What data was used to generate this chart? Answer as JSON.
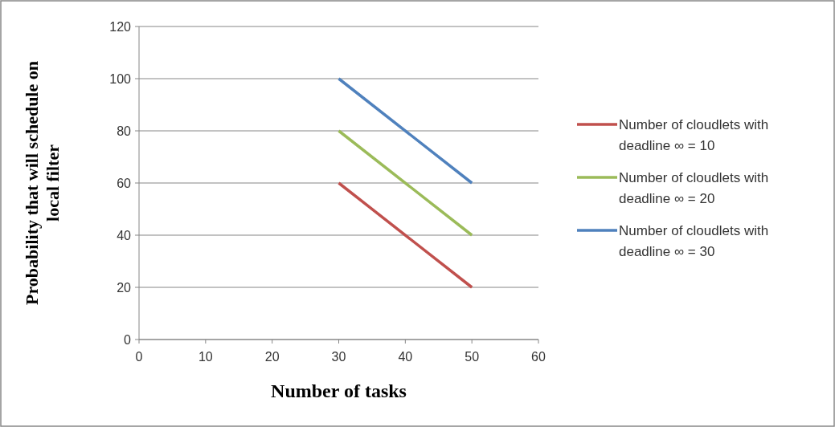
{
  "chart_data": {
    "type": "line",
    "xlabel": "Number of tasks",
    "ylabel": "Probability that will schedule on local filter",
    "xlim": [
      0,
      60
    ],
    "xticks": [
      0,
      10,
      20,
      30,
      40,
      50,
      60
    ],
    "ylim": [
      0,
      120
    ],
    "yticks": [
      0,
      20,
      40,
      60,
      80,
      100,
      120
    ],
    "grid": "y",
    "legend": "right",
    "x": [
      30,
      50
    ],
    "series": [
      {
        "name": "Number of cloudlets with deadline ∞ = 10",
        "color": "#c0504d",
        "values": [
          60,
          20
        ]
      },
      {
        "name": "Number of cloudlets with deadline ∞ = 20",
        "color": "#9bbb59",
        "values": [
          80,
          40
        ]
      },
      {
        "name": "Number of cloudlets with deadline ∞ = 30",
        "color": "#4f81bd",
        "values": [
          100,
          60
        ]
      }
    ]
  }
}
